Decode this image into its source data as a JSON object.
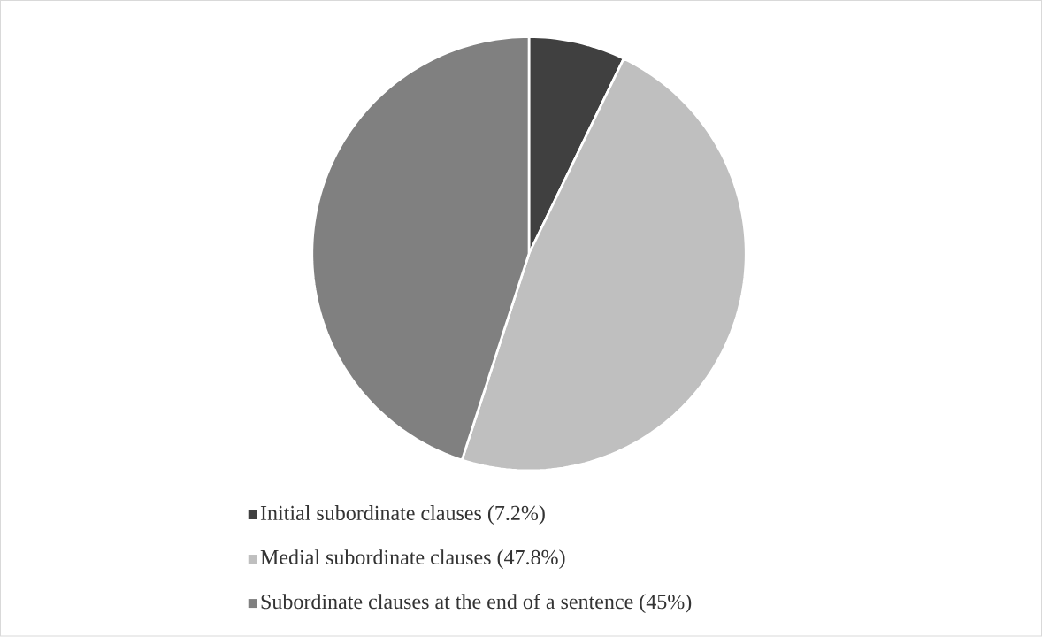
{
  "chart_data": {
    "type": "pie",
    "categories": [
      "Initial subordinate clauses (7.2%)",
      "Medial subordinate clauses (47.8%)",
      "Subordinate clauses at the end of a sentence (45%)"
    ],
    "values": [
      7.2,
      47.8,
      45
    ],
    "colors": [
      "#404040",
      "#bfbfbf",
      "#808080"
    ],
    "legend": "bottom"
  }
}
